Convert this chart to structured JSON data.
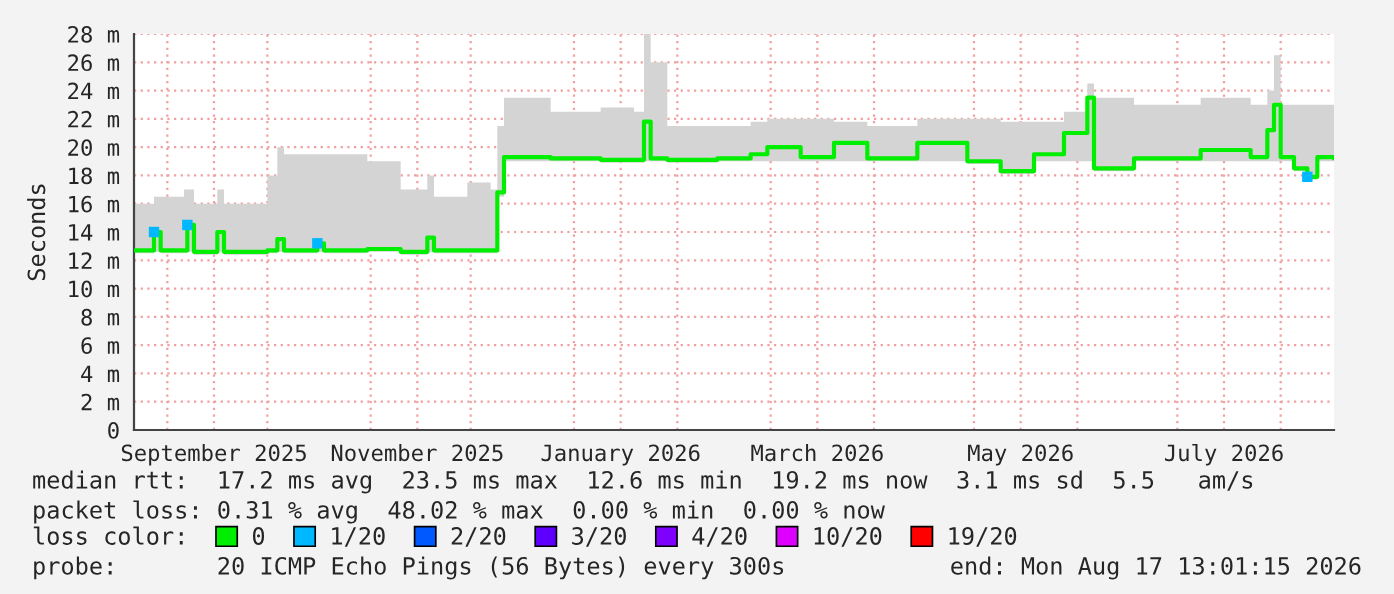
{
  "chart_data": {
    "type": "step",
    "ylabel": "Seconds",
    "legend_title": "loss color:",
    "legend": "bottom",
    "grid": true,
    "ylim": [
      0,
      28
    ],
    "yticks": [
      0,
      {
        "value": 2,
        "label": "2 m"
      },
      {
        "value": 4,
        "label": "4 m"
      },
      {
        "value": 6,
        "label": "6 m"
      },
      {
        "value": 8,
        "label": "8 m"
      },
      {
        "value": 10,
        "label": "10 m"
      },
      {
        "value": 12,
        "label": "12 m"
      },
      {
        "value": 14,
        "label": "14 m"
      },
      {
        "value": 16,
        "label": "16 m"
      },
      {
        "value": 18,
        "label": "18 m"
      },
      {
        "value": 20,
        "label": "20 m"
      },
      {
        "value": 22,
        "label": "22 m"
      },
      {
        "value": 24,
        "label": "24 m"
      },
      {
        "value": 26,
        "label": "26 m"
      },
      {
        "value": 28,
        "label": "28 m"
      }
    ],
    "xlim": [
      "2025-08-22",
      "2026-08-17"
    ],
    "xticks": [
      {
        "value": "2025-09-01",
        "label": null
      },
      {
        "value": "2025-09-15",
        "label": "September 2025"
      },
      {
        "value": "2025-10-01",
        "label": null
      },
      {
        "value": "2025-11-01",
        "label": null
      },
      {
        "value": "2025-11-15",
        "label": "November 2025"
      },
      {
        "value": "2025-12-01",
        "label": null
      },
      {
        "value": "2026-01-01",
        "label": null
      },
      {
        "value": "2026-01-15",
        "label": "January 2026"
      },
      {
        "value": "2026-02-01",
        "label": null
      },
      {
        "value": "2026-03-01",
        "label": null
      },
      {
        "value": "2026-03-15",
        "label": "March 2026"
      },
      {
        "value": "2026-04-01",
        "label": null
      },
      {
        "value": "2026-05-01",
        "label": null
      },
      {
        "value": "2026-05-15",
        "label": "May 2026"
      },
      {
        "value": "2026-06-01",
        "label": null
      },
      {
        "value": "2026-07-01",
        "label": null
      },
      {
        "value": "2026-07-15",
        "label": "July 2026"
      },
      {
        "value": "2026-08-01",
        "label": null
      }
    ],
    "x": [
      "2025-08-22",
      "2025-08-27",
      "2025-08-28",
      "2025-08-30",
      "2025-09-06",
      "2025-09-07",
      "2025-09-09",
      "2025-09-16",
      "2025-09-18",
      "2025-10-01",
      "2025-10-04",
      "2025-10-06",
      "2025-10-16",
      "2025-10-18",
      "2025-10-31",
      "2025-11-10",
      "2025-11-18",
      "2025-11-20",
      "2025-11-30",
      "2025-12-07",
      "2025-12-09",
      "2025-12-11",
      "2025-12-25",
      "2026-01-09",
      "2026-01-19",
      "2026-01-22",
      "2026-01-24",
      "2026-01-29",
      "2026-02-13",
      "2026-02-23",
      "2026-02-28",
      "2026-03-10",
      "2026-03-20",
      "2026-03-30",
      "2026-04-14",
      "2026-04-29",
      "2026-05-09",
      "2026-05-19",
      "2026-05-28",
      "2026-06-04",
      "2026-06-06",
      "2026-06-18",
      "2026-07-08",
      "2026-07-23",
      "2026-07-28",
      "2026-07-30",
      "2026-08-01",
      "2026-08-05",
      "2026-08-09",
      "2026-08-12",
      "2026-08-17"
    ],
    "series": [
      {
        "name": "0",
        "color": "#00ee00",
        "values": [
          12.7,
          12.7,
          14.0,
          12.7,
          12.7,
          14.5,
          12.6,
          14.0,
          12.6,
          12.7,
          13.5,
          12.7,
          13.2,
          12.7,
          12.8,
          12.6,
          13.6,
          12.7,
          12.7,
          12.7,
          16.8,
          19.3,
          19.2,
          19.1,
          19.1,
          21.8,
          19.2,
          19.1,
          19.2,
          19.5,
          20.0,
          19.3,
          20.3,
          19.2,
          20.3,
          19.0,
          18.3,
          19.5,
          21.0,
          23.5,
          18.5,
          19.2,
          19.8,
          19.3,
          21.2,
          23.0,
          19.3,
          18.5,
          17.9,
          19.3,
          19.2
        ],
        "lower": [
          12.5,
          12.5,
          12.6,
          12.5,
          12.5,
          12.6,
          12.4,
          12.6,
          12.4,
          12.5,
          12.6,
          12.5,
          12.6,
          12.5,
          12.6,
          12.4,
          12.6,
          12.5,
          12.5,
          12.5,
          16.5,
          19.0,
          19.0,
          18.9,
          18.9,
          19.0,
          19.0,
          18.9,
          19.0,
          19.0,
          19.0,
          19.0,
          19.0,
          19.0,
          19.0,
          18.8,
          18.1,
          19.0,
          19.0,
          19.0,
          18.3,
          19.0,
          19.0,
          19.0,
          19.0,
          19.0,
          19.0,
          18.3,
          17.7,
          19.0,
          19.0
        ],
        "upper": [
          16,
          16,
          16.5,
          16.5,
          17,
          17,
          16,
          17,
          16,
          18,
          20,
          19.5,
          19.5,
          19.5,
          19,
          17,
          18,
          16.5,
          17.5,
          17,
          21.5,
          23.5,
          22.5,
          22.8,
          22.5,
          28,
          26,
          21.5,
          21.5,
          21.8,
          22,
          22,
          21.8,
          21.5,
          22,
          22,
          21.8,
          21.8,
          22.5,
          24.5,
          23.5,
          23,
          23.5,
          23,
          24,
          26.5,
          23,
          23,
          23,
          23,
          23
        ]
      },
      {
        "name": "1/20",
        "color": "#00b8ff",
        "type": "scatter",
        "values": [
          null,
          null,
          14.0,
          null,
          null,
          14.5,
          null,
          null,
          null,
          null,
          null,
          null,
          13.2,
          null,
          null,
          null,
          null,
          null,
          null,
          null,
          null,
          null,
          null,
          null,
          null,
          null,
          null,
          null,
          null,
          null,
          null,
          null,
          null,
          null,
          null,
          null,
          null,
          null,
          null,
          null,
          null,
          null,
          null,
          null,
          null,
          null,
          null,
          null,
          17.9,
          null,
          null
        ]
      },
      {
        "name": "2/20",
        "color": "#0059ff",
        "type": "scatter",
        "values": [
          null,
          null,
          null,
          null,
          null,
          null,
          null,
          null,
          null,
          null,
          null,
          null,
          null,
          null,
          null,
          null,
          null,
          null,
          null,
          null,
          null,
          null,
          null,
          null,
          null,
          null,
          null,
          null,
          null,
          null,
          null,
          null,
          null,
          null,
          null,
          null,
          null,
          null,
          null,
          null,
          null,
          null,
          null,
          null,
          null,
          null,
          null,
          null,
          null,
          null,
          null
        ]
      },
      {
        "name": "3/20",
        "color": "#5e00ff",
        "type": "scatter",
        "values": [
          null,
          null,
          null,
          null,
          null,
          null,
          null,
          null,
          null,
          null,
          null,
          null,
          null,
          null,
          null,
          null,
          null,
          null,
          null,
          null,
          null,
          null,
          null,
          null,
          null,
          null,
          null,
          null,
          null,
          null,
          null,
          null,
          null,
          null,
          null,
          null,
          null,
          null,
          null,
          null,
          null,
          null,
          null,
          null,
          null,
          null,
          null,
          null,
          null,
          null,
          null
        ]
      },
      {
        "name": "4/20",
        "color": "#7e00ff",
        "type": "scatter",
        "values": [
          null,
          null,
          null,
          null,
          null,
          null,
          null,
          null,
          null,
          null,
          null,
          null,
          null,
          null,
          null,
          null,
          null,
          null,
          null,
          null,
          null,
          null,
          null,
          null,
          null,
          null,
          null,
          null,
          null,
          null,
          null,
          null,
          null,
          null,
          null,
          null,
          null,
          null,
          null,
          null,
          null,
          null,
          null,
          null,
          null,
          null,
          null,
          null,
          null,
          null,
          null
        ]
      },
      {
        "name": "10/20",
        "color": "#dd00ff",
        "type": "scatter",
        "values": [
          null,
          null,
          null,
          null,
          null,
          null,
          null,
          null,
          null,
          null,
          null,
          null,
          null,
          null,
          null,
          null,
          null,
          null,
          null,
          null,
          null,
          null,
          null,
          null,
          null,
          null,
          null,
          null,
          null,
          null,
          null,
          null,
          null,
          null,
          null,
          null,
          null,
          null,
          null,
          null,
          null,
          null,
          null,
          null,
          null,
          null,
          null,
          null,
          null,
          null,
          null
        ]
      },
      {
        "name": "19/20",
        "color": "#ff0000",
        "type": "scatter",
        "values": [
          null,
          null,
          null,
          null,
          null,
          null,
          null,
          null,
          null,
          null,
          null,
          null,
          null,
          null,
          null,
          null,
          null,
          null,
          null,
          null,
          null,
          null,
          null,
          null,
          null,
          null,
          null,
          null,
          null,
          null,
          null,
          null,
          null,
          null,
          null,
          null,
          null,
          null,
          null,
          null,
          null,
          null,
          null,
          null,
          null,
          null,
          null,
          null,
          null,
          null,
          null
        ]
      }
    ],
    "annotations": [
      "median rtt:  17.2 ms avg  23.5 ms max  12.6 ms min  19.2 ms now  3.1 ms sd  5.5   am/s",
      "packet loss: 0.31 % avg  48.02 % max  0.00 % min  0.00 % now",
      "probe:       20 ICMP Echo Pings (56 Bytes) every 300s",
      "end: Mon Aug 17 13:01:15 2026"
    ]
  }
}
